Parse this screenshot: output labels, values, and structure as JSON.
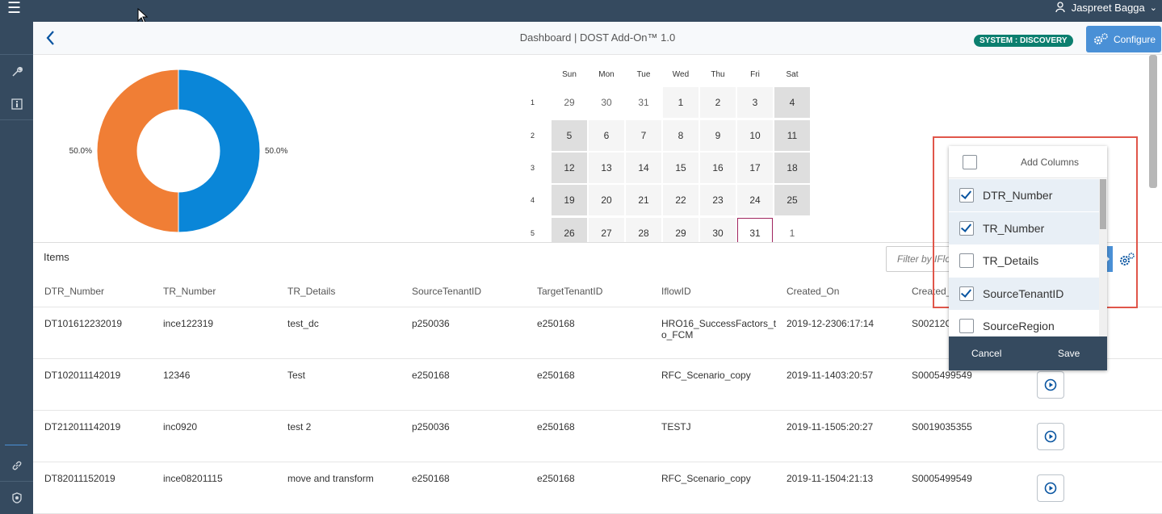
{
  "topbar": {
    "menu_icon": "hamburger-icon",
    "user_name": "Jaspreet Bagga"
  },
  "sidebar": {
    "icons": [
      "wrench-icon",
      "info-icon",
      "link-icon",
      "badge-icon"
    ]
  },
  "header": {
    "title": "Dashboard | DOST Add-On™ 1.0",
    "system_badge": "SYSTEM : DISCOVERY",
    "configure_label": "Configure"
  },
  "chart_data": {
    "type": "pie",
    "categories": [
      "",
      ""
    ],
    "values": [
      50.0,
      50.0
    ],
    "labels": [
      "50.0%",
      "50.0%"
    ],
    "colors": [
      "#0a86d8",
      "#f07e35"
    ],
    "donut": true
  },
  "calendar": {
    "days": [
      "Sun",
      "Mon",
      "Tue",
      "Wed",
      "Thu",
      "Fri",
      "Sat"
    ],
    "weeks": [
      {
        "num": "1",
        "dates": [
          "29",
          "30",
          "31",
          "1",
          "2",
          "3",
          "4"
        ]
      },
      {
        "num": "2",
        "dates": [
          "5",
          "6",
          "7",
          "8",
          "9",
          "10",
          "11"
        ]
      },
      {
        "num": "3",
        "dates": [
          "12",
          "13",
          "14",
          "15",
          "16",
          "17",
          "18"
        ]
      },
      {
        "num": "4",
        "dates": [
          "19",
          "20",
          "21",
          "22",
          "23",
          "24",
          "25"
        ]
      },
      {
        "num": "5",
        "dates": [
          "26",
          "27",
          "28",
          "29",
          "30",
          "31",
          "1"
        ]
      }
    ]
  },
  "items": {
    "title": "Items",
    "filter_placeholder": "Filter by IFlow",
    "columns": [
      "DTR_Number",
      "TR_Number",
      "TR_Details",
      "SourceTenantID",
      "TargetTenantID",
      "IflowID",
      "Created_On",
      "Created_"
    ],
    "rows": [
      [
        "DT101612232019",
        "ince122319",
        "test_dc",
        "p250036",
        "e250168",
        "HRO16_SuccessFactors_t o_FCM",
        "2019-12-2306:17:14",
        "S00212C"
      ],
      [
        "DT102011142019",
        "12346",
        "Test",
        "e250168",
        "e250168",
        "RFC_Scenario_copy",
        "2019-11-1403:20:57",
        "S0005499549"
      ],
      [
        "DT212011142019",
        "inc0920",
        "test 2",
        "p250036",
        "e250168",
        "TESTJ",
        "2019-11-1505:20:27",
        "S0019035355"
      ],
      [
        "DT82011152019",
        "ince08201115",
        "move and transform",
        "e250168",
        "e250168",
        "RFC_Scenario_copy",
        "2019-11-1504:21:13",
        "S0005499549"
      ]
    ]
  },
  "columns_popup": {
    "title": "Add Columns",
    "options": [
      {
        "label": "DTR_Number",
        "checked": true
      },
      {
        "label": "TR_Number",
        "checked": true
      },
      {
        "label": "TR_Details",
        "checked": false
      },
      {
        "label": "SourceTenantID",
        "checked": true
      },
      {
        "label": "SourceRegion",
        "checked": false
      }
    ],
    "cancel_label": "Cancel",
    "save_label": "Save"
  }
}
